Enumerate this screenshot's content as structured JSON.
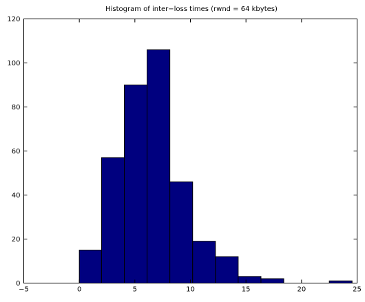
{
  "chart_data": {
    "type": "bar",
    "title": "Histogram of inter−loss times (rwnd = 64 kbytes)",
    "xlabel": "",
    "ylabel": "",
    "xlim": [
      -5,
      25
    ],
    "ylim": [
      0,
      120
    ],
    "grid": false,
    "bar_color": "#00007f",
    "x_ticks": [
      {
        "value": -5,
        "label": "−5"
      },
      {
        "value": 0,
        "label": "0"
      },
      {
        "value": 5,
        "label": "5"
      },
      {
        "value": 10,
        "label": "10"
      },
      {
        "value": 15,
        "label": "15"
      },
      {
        "value": 20,
        "label": "20"
      },
      {
        "value": 25,
        "label": "25"
      }
    ],
    "y_ticks": [
      {
        "value": 0,
        "label": "0"
      },
      {
        "value": 20,
        "label": "20"
      },
      {
        "value": 40,
        "label": "40"
      },
      {
        "value": 60,
        "label": "60"
      },
      {
        "value": 80,
        "label": "80"
      },
      {
        "value": 100,
        "label": "100"
      },
      {
        "value": 120,
        "label": "120"
      }
    ],
    "bins": [
      {
        "start": 0.0,
        "end": 2.0,
        "count": 15
      },
      {
        "start": 2.0,
        "end": 4.05,
        "count": 57
      },
      {
        "start": 4.05,
        "end": 6.1,
        "count": 90
      },
      {
        "start": 6.1,
        "end": 8.15,
        "count": 106
      },
      {
        "start": 8.15,
        "end": 10.2,
        "count": 46
      },
      {
        "start": 10.2,
        "end": 12.25,
        "count": 19
      },
      {
        "start": 12.25,
        "end": 14.3,
        "count": 12
      },
      {
        "start": 14.3,
        "end": 16.35,
        "count": 3
      },
      {
        "start": 16.35,
        "end": 18.4,
        "count": 2
      },
      {
        "start": 18.4,
        "end": 20.45,
        "count": 0
      },
      {
        "start": 20.45,
        "end": 22.5,
        "count": 0
      },
      {
        "start": 22.5,
        "end": 24.55,
        "count": 1
      }
    ]
  }
}
